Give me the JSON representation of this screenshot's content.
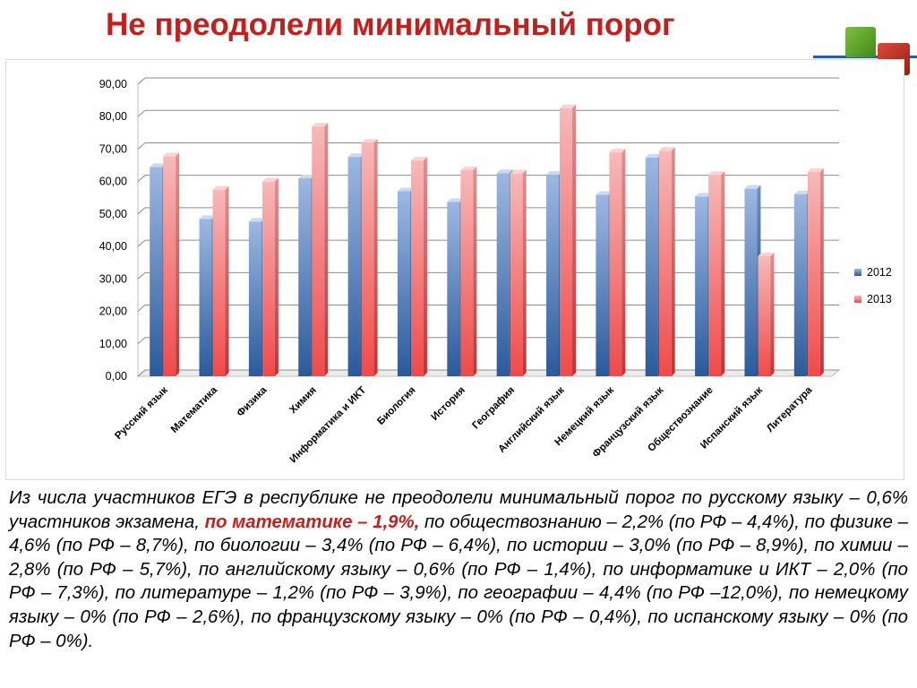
{
  "slide": {
    "title": "Не преодолели минимальный порог",
    "description": {
      "part1": "Из числа участников ЕГЭ в республике не преодолели минимальный порог по русскому языку – 0,6%  участников экзамена, ",
      "highlight": "по математике – 1,9%,",
      "part2": " по обществознанию – 2,2% (по РФ – 4,4%), по физике – 4,6% (по РФ – 8,7%), по биологии – 3,4% (по РФ – 6,4%), по истории – 3,0% (по РФ – 8,9%), по химии – 2,8% (по РФ – 5,7%), по английскому языку – 0,6% (по РФ – 1,4%), по информатике и ИКТ – 2,0% (по РФ – 7,3%), по литературе – 1,2% (по РФ – 3,9%), по географии – 4,4% (по РФ –12,0%), по немецкому языку – 0% (по РФ – 2,6%), по французскому языку – 0% (по РФ – 0,4%), по испанскому языку – 0% (по РФ – 0%)."
    },
    "colors": {
      "title": "#c0211f",
      "series_2012": "#2f5c9c",
      "series_2013": "#f15a5a"
    }
  },
  "chart_data": {
    "type": "bar",
    "style": "3d-clustered-column",
    "categories": [
      "Русский язык",
      "Математика",
      "Физика",
      "Химия",
      "Информатика и ИКТ",
      "Биология",
      "История",
      "География",
      "Английский язык",
      "Немецкий язык",
      "Французский язык",
      "Обществознание",
      "Испанский язык",
      "Литература"
    ],
    "series": [
      {
        "name": "2012",
        "values": [
          64.5,
          48.5,
          47.7,
          61.0,
          67.6,
          57.0,
          53.7,
          62.6,
          62.1,
          55.9,
          67.4,
          55.4,
          57.8,
          56.1
        ]
      },
      {
        "name": "2013",
        "values": [
          67.8,
          57.5,
          60.0,
          77.0,
          72.0,
          66.5,
          63.5,
          62.5,
          82.6,
          69.0,
          69.5,
          62.0,
          37.0,
          63.0
        ]
      }
    ],
    "y_ticks": [
      "0,00",
      "10,00",
      "20,00",
      "30,00",
      "40,00",
      "50,00",
      "60,00",
      "70,00",
      "80,00",
      "90,00"
    ],
    "ylim": [
      0,
      90
    ],
    "grid": true,
    "legend_position": "right"
  }
}
